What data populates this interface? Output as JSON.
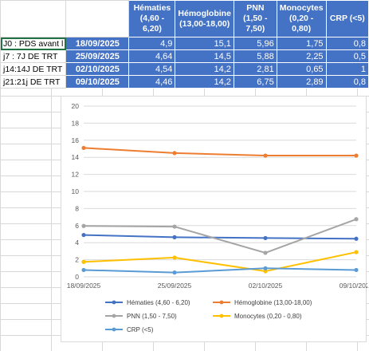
{
  "table": {
    "headers": [
      "",
      "",
      "Hématies (4,60 - 6,20)",
      "Hémoglobine (13,00-18,00)",
      "PNN (1,50 - 7,50)",
      "Monocytes (0,20 - 0,80)",
      "CRP (<5)"
    ],
    "rows": [
      {
        "label": "J0 : PDS avant l",
        "date": "18/09/2025",
        "values": [
          "4,9",
          "15,1",
          "5,96",
          "1,75",
          "0,8"
        ]
      },
      {
        "label": "j7 : 7J DE TRT",
        "date": "25/09/2025",
        "values": [
          "4,64",
          "14,5",
          "5,88",
          "2,25",
          "0,5"
        ]
      },
      {
        "label": "j14:14J DE TRT",
        "date": "02/10/2025",
        "values": [
          "4,54",
          "14,2",
          "2,81",
          "0,65",
          "1"
        ]
      },
      {
        "label": "j21:21j DE TRT",
        "date": "09/10/2025",
        "values": [
          "4,46",
          "14,2",
          "6,75",
          "2,89",
          "0,8"
        ]
      }
    ]
  },
  "chart_data": {
    "type": "line",
    "categories": [
      "18/09/2025",
      "25/09/2025",
      "02/10/2025",
      "09/10/2025"
    ],
    "ylim": [
      0,
      20
    ],
    "yticks": [
      "0",
      "2",
      "4",
      "6",
      "8",
      "10",
      "12",
      "14",
      "16",
      "18",
      "20"
    ],
    "xticks": [
      "18/09/2025",
      "25/09/2025",
      "02/10/2025",
      "09/10/2025"
    ],
    "grid": true,
    "legend_position": "bottom",
    "series": [
      {
        "name": "Hématies (4,60 - 6,20)",
        "color": "#4472c4",
        "values": [
          4.9,
          4.64,
          4.54,
          4.46
        ]
      },
      {
        "name": "Hémoglobine (13,00-18,00)",
        "color": "#ed7d31",
        "values": [
          15.1,
          14.5,
          14.2,
          14.2
        ]
      },
      {
        "name": "PNN (1,50 - 7,50)",
        "color": "#a5a5a5",
        "values": [
          5.96,
          5.88,
          2.81,
          6.75
        ]
      },
      {
        "name": "Monocytes (0,20 - 0,80)",
        "color": "#ffc000",
        "values": [
          1.75,
          2.25,
          0.65,
          2.89
        ]
      },
      {
        "name": "CRP (<5)",
        "color": "#5b9bd5",
        "values": [
          0.8,
          0.5,
          1,
          0.8
        ]
      }
    ]
  }
}
